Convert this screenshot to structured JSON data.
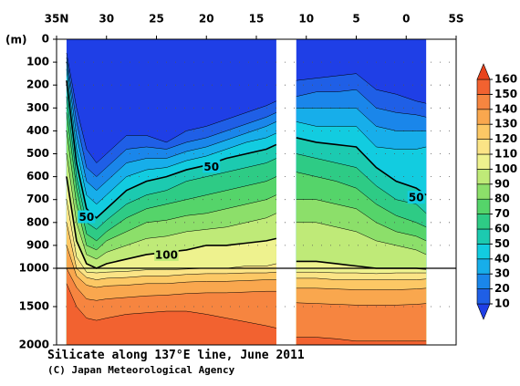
{
  "chart_data": {
    "type": "contour",
    "title": "Silicate along 137°E line, June 2011",
    "subtitle": "(C) Japan Meteorological Agency",
    "ylabel": "(m)",
    "xlim": [
      35,
      -5
    ],
    "xticks": [
      {
        "value": 35,
        "label": "35N"
      },
      30,
      25,
      20,
      15,
      10,
      5,
      0,
      {
        "value": -5,
        "label": "5S"
      }
    ],
    "ylim": [
      0,
      2000
    ],
    "ybreak": 1000,
    "yticks": [
      0,
      100,
      200,
      300,
      400,
      500,
      600,
      700,
      800,
      900,
      1000,
      1500,
      2000
    ],
    "grid": true,
    "x": [
      34,
      33,
      32,
      31,
      30,
      28,
      26,
      24,
      22,
      20,
      18,
      16,
      14,
      13,
      12,
      11,
      9,
      7,
      5,
      3,
      1,
      -1,
      -2
    ],
    "levels": [
      10,
      20,
      30,
      40,
      50,
      60,
      70,
      80,
      90,
      100,
      110,
      120,
      130,
      140,
      150,
      160
    ],
    "colors": [
      "#1f3fe6",
      "#1f5fe6",
      "#1a86ea",
      "#17aeea",
      "#12cce0",
      "#1ccab0",
      "#2ecb85",
      "#55d46a",
      "#8cdf6a",
      "#bfea78",
      "#eef28e",
      "#fbe486",
      "#fcc865",
      "#f9a74e",
      "#f68540",
      "#f26230",
      "#e8431c"
    ],
    "bold_levels": [
      50,
      100
    ],
    "depths": [
      [
        60,
        300,
        480,
        540,
        500,
        420,
        420,
        450,
        400,
        380,
        350,
        320,
        290,
        270,
        null,
        180,
        170,
        160,
        150,
        220,
        240,
        270,
        280
      ],
      [
        80,
        360,
        560,
        600,
        560,
        480,
        470,
        480,
        450,
        430,
        400,
        370,
        340,
        320,
        null,
        250,
        230,
        230,
        220,
        300,
        320,
        330,
        340
      ],
      [
        100,
        420,
        620,
        660,
        620,
        540,
        520,
        520,
        490,
        470,
        440,
        410,
        380,
        360,
        null,
        300,
        300,
        300,
        300,
        380,
        400,
        400,
        400
      ],
      [
        130,
        480,
        680,
        720,
        680,
        600,
        570,
        560,
        530,
        510,
        480,
        450,
        430,
        410,
        null,
        360,
        380,
        380,
        380,
        470,
        480,
        480,
        470
      ],
      [
        180,
        540,
        740,
        780,
        740,
        660,
        620,
        600,
        570,
        550,
        520,
        500,
        480,
        460,
        null,
        430,
        450,
        460,
        470,
        560,
        620,
        650,
        680
      ],
      [
        250,
        600,
        800,
        830,
        790,
        720,
        680,
        660,
        620,
        600,
        580,
        560,
        540,
        520,
        null,
        500,
        520,
        540,
        560,
        640,
        700,
        720,
        760
      ],
      [
        320,
        650,
        850,
        880,
        840,
        780,
        740,
        720,
        700,
        680,
        660,
        640,
        620,
        600,
        null,
        580,
        600,
        620,
        650,
        720,
        770,
        800,
        820
      ],
      [
        400,
        720,
        900,
        920,
        880,
        840,
        800,
        790,
        770,
        760,
        740,
        720,
        700,
        680,
        null,
        700,
        700,
        720,
        740,
        800,
        840,
        860,
        880
      ],
      [
        500,
        800,
        940,
        960,
        930,
        900,
        870,
        860,
        840,
        830,
        820,
        800,
        780,
        760,
        null,
        800,
        800,
        820,
        840,
        880,
        900,
        920,
        940
      ],
      [
        600,
        880,
        980,
        1000,
        980,
        960,
        940,
        930,
        920,
        900,
        900,
        890,
        880,
        870,
        null,
        970,
        970,
        980,
        990,
        1000,
        1000,
        1000,
        1010
      ],
      [
        700,
        950,
        1050,
        1060,
        1050,
        1040,
        1020,
        1020,
        1010,
        1000,
        1000,
        990,
        990,
        980,
        null,
        1050,
        1050,
        1060,
        1060,
        1070,
        1060,
        1060,
        1060
      ],
      [
        800,
        1000,
        1120,
        1150,
        1130,
        1120,
        1100,
        1100,
        1080,
        1070,
        1070,
        1060,
        1060,
        1050,
        null,
        1130,
        1130,
        1150,
        1150,
        1150,
        1150,
        1150,
        1140
      ],
      [
        900,
        1100,
        1220,
        1250,
        1230,
        1220,
        1200,
        1200,
        1180,
        1170,
        1170,
        1160,
        1150,
        1150,
        null,
        1260,
        1260,
        1270,
        1280,
        1280,
        1280,
        1270,
        1260
      ],
      [
        1000,
        1250,
        1400,
        1420,
        1400,
        1380,
        1360,
        1350,
        1330,
        1320,
        1320,
        1310,
        1300,
        1300,
        null,
        1450,
        1460,
        1470,
        1480,
        1480,
        1480,
        1470,
        1460
      ],
      [
        1200,
        1500,
        1650,
        1680,
        1650,
        1600,
        1580,
        1560,
        1560,
        1600,
        1650,
        1700,
        1750,
        1780,
        null,
        1900,
        1900,
        1920,
        1950,
        1950,
        1950,
        1950,
        1950
      ]
    ],
    "contour_labels": [
      {
        "label": "50",
        "x": 19.5,
        "y": 555
      },
      {
        "label": "50",
        "x": 32,
        "y": 775
      },
      {
        "label": "100",
        "x": 24,
        "y": 940
      },
      {
        "label": "50",
        "x": -1,
        "y": 690
      }
    ]
  }
}
